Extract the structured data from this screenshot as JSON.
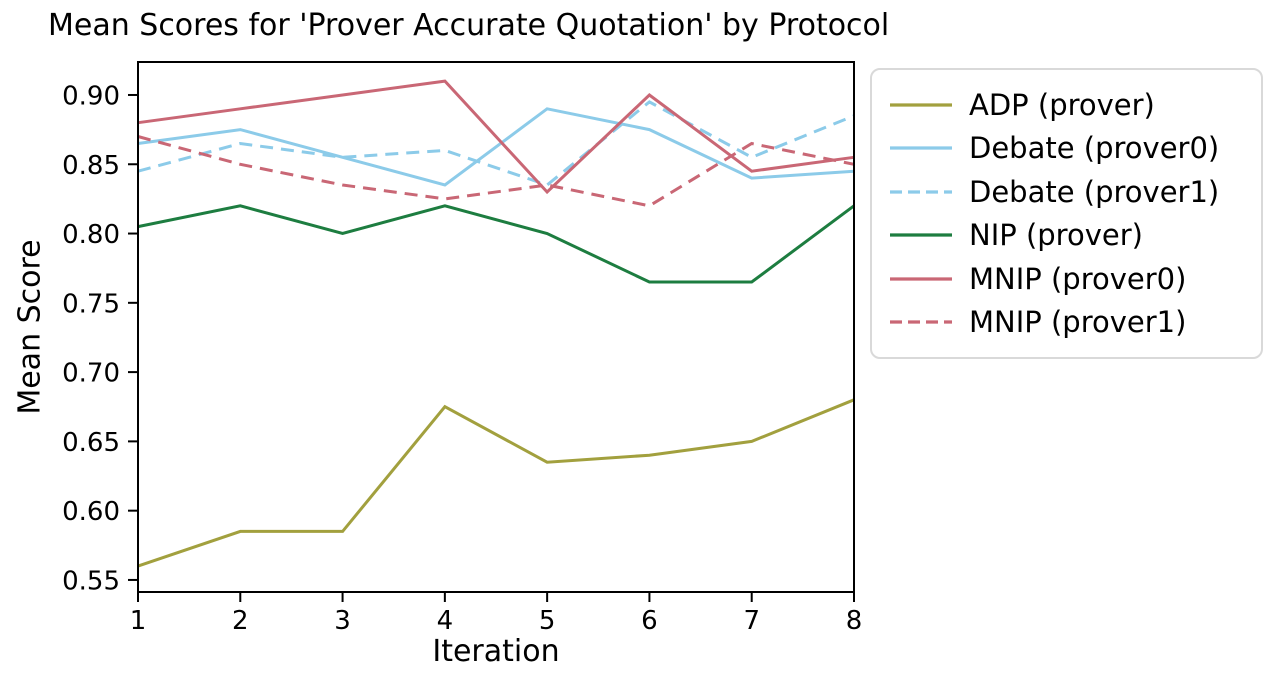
{
  "chart_data": {
    "type": "line",
    "title": "Mean Scores for 'Prover Accurate Quotation' by Protocol",
    "xlabel": "Iteration",
    "ylabel": "Mean Score",
    "grid": false,
    "legend_position": "outside-right",
    "x": [
      1,
      2,
      3,
      4,
      5,
      6,
      7,
      8
    ],
    "xlim": [
      1,
      8
    ],
    "ylim": [
      0.5413,
      0.9238
    ],
    "xtick_labels": [
      "1",
      "2",
      "3",
      "4",
      "5",
      "6",
      "7",
      "8"
    ],
    "yticks": [
      0.9,
      0.85,
      0.8,
      0.75,
      0.7,
      0.65,
      0.6,
      0.55
    ],
    "ytick_labels": [
      "0.90",
      "0.85",
      "0.80",
      "0.75",
      "0.70",
      "0.65",
      "0.60",
      "0.55"
    ],
    "series": [
      {
        "name": "ADP (prover)",
        "color": "#a2a03e",
        "dash": "solid",
        "values": [
          0.56,
          0.585,
          0.585,
          0.675,
          0.635,
          0.64,
          0.65,
          0.68
        ]
      },
      {
        "name": "Debate (prover0)",
        "color": "#8ccbe9",
        "dash": "solid",
        "values": [
          0.865,
          0.875,
          0.855,
          0.835,
          0.89,
          0.875,
          0.84,
          0.845
        ]
      },
      {
        "name": "Debate (prover1)",
        "color": "#8ccbe9",
        "dash": "dashed",
        "values": [
          0.845,
          0.865,
          0.855,
          0.86,
          0.835,
          0.895,
          0.855,
          0.885
        ]
      },
      {
        "name": "NIP (prover)",
        "color": "#1d7d40",
        "dash": "solid",
        "values": [
          0.805,
          0.82,
          0.8,
          0.82,
          0.8,
          0.765,
          0.765,
          0.82
        ]
      },
      {
        "name": "MNIP (prover0)",
        "color": "#c96775",
        "dash": "solid",
        "values": [
          0.88,
          0.89,
          0.9,
          0.91,
          0.83,
          0.9,
          0.845,
          0.855
        ]
      },
      {
        "name": "MNIP (prover1)",
        "color": "#c96775",
        "dash": "dashed",
        "values": [
          0.87,
          0.85,
          0.835,
          0.825,
          0.835,
          0.82,
          0.865,
          0.85
        ]
      }
    ]
  }
}
